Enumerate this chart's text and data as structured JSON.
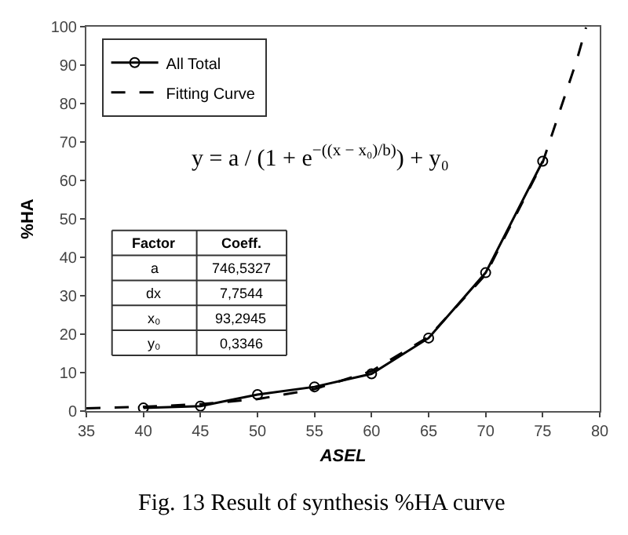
{
  "chart_data": {
    "type": "line",
    "xlabel": "ASEL",
    "ylabel": "%HA",
    "xlim": [
      35,
      80
    ],
    "xticks": [
      35,
      40,
      45,
      50,
      55,
      60,
      65,
      70,
      75,
      80
    ],
    "ylim": [
      0,
      100
    ],
    "yticks": [
      0,
      10,
      20,
      30,
      40,
      50,
      60,
      70,
      80,
      90,
      100
    ],
    "legend": "top left",
    "series": [
      {
        "name": "All Total",
        "color": "#000000",
        "marker": "circle",
        "line_style": "solid",
        "x": [
          40,
          45,
          50,
          55,
          60,
          65,
          70,
          75
        ],
        "values": [
          0.8,
          1.3,
          4.3,
          6.3,
          9.7,
          19,
          36,
          65
        ]
      },
      {
        "name": "Fitting Curve",
        "color": "#000000",
        "marker": "none",
        "line_style": "dashed",
        "x": [
          35,
          40,
          45,
          50,
          55,
          60,
          65,
          70,
          75,
          78,
          78.8
        ],
        "values": [
          0.7,
          1.1,
          1.8,
          3.1,
          5.7,
          10.4,
          19.3,
          35.5,
          64.7,
          91.4,
          99.8
        ]
      }
    ],
    "annotations": [
      "y = a / (1 + e$^{−((x − x₀)/b)}$) + y₀",
      "Factor",
      "Coeff.",
      "a",
      "746,5327",
      "dx",
      "7,7544",
      "x₀",
      "93,2945",
      "y₀",
      "0,3346",
      "Fig. 13 Result of synthesis %HA curve"
    ]
  }
}
